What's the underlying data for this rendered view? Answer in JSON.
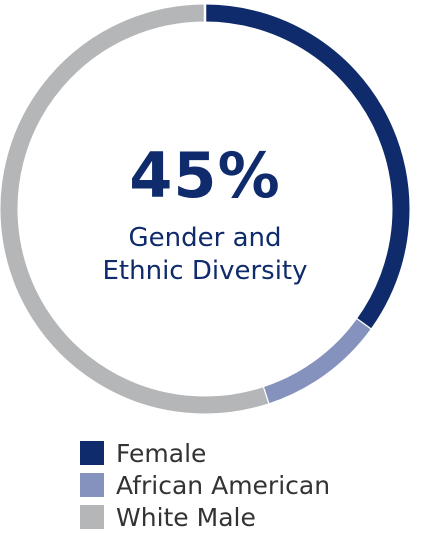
{
  "chart_data": {
    "type": "pie",
    "style": "donut",
    "center_value": "45%",
    "center_label_lines": [
      "Gender and",
      "Ethnic Diversity"
    ],
    "categories": [
      "Female",
      "African American",
      "White Male"
    ],
    "values": [
      35,
      10,
      55
    ],
    "colors": [
      "#0f2b6b",
      "#8592bd",
      "#b5b6b7"
    ],
    "legend_position": "bottom"
  }
}
